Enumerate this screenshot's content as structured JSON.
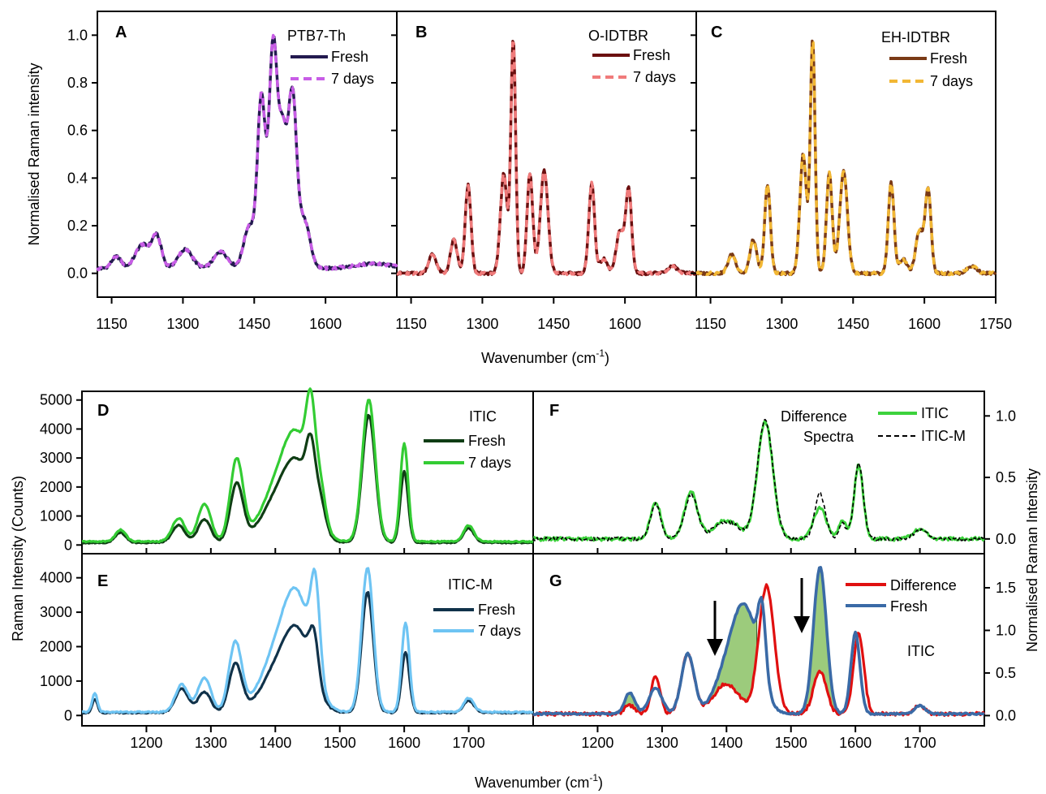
{
  "figure": {
    "top_xlabel": "Wavenumber (cm",
    "bottom_xlabel": "Wavenumber (cm",
    "xlabel_sup": "-1",
    "xlabel_close": ")",
    "top_ylabel": "Normalised Raman intensity",
    "bottom_left_ylabel": "Raman Intensity (Counts)",
    "bottom_right_ylabel": "Normalised Raman Intensity"
  },
  "colors": {
    "ptb7_fresh": "#231a4f",
    "ptb7_7days": "#c85de6",
    "oidtbr_fresh": "#6b0f0f",
    "oidtbr_7days": "#f07b7b",
    "ehidtbr_fresh": "#7a3a16",
    "ehidtbr_7days": "#f2b734",
    "itic_fresh": "#0f3d14",
    "itic_7days": "#33cc33",
    "iticm_fresh": "#10324a",
    "iticm_7days": "#6ec4f3",
    "diff_itic": "#3cd23c",
    "diff_iticm": "#000000",
    "difference": "#e01010",
    "fresh_blue": "#3a6aa6",
    "fill_green": "#9ccb7c"
  },
  "chart_data": [
    {
      "panel": "A",
      "type": "line",
      "legend_title": "PTB7-Th",
      "xlim": [
        1120,
        1750
      ],
      "ylim": [
        -0.1,
        1.1
      ],
      "xticks": [
        1150,
        1300,
        1450,
        1600
      ],
      "yticks": [
        0.0,
        0.2,
        0.4,
        0.6,
        0.8,
        1.0
      ],
      "yticklabels": [
        "0.0",
        "0.2",
        "0.4",
        "0.6",
        "0.8",
        "1.0"
      ],
      "peaks": [
        [
          1160,
          0.05,
          10
        ],
        [
          1215,
          0.1,
          15
        ],
        [
          1245,
          0.13,
          10
        ],
        [
          1305,
          0.08,
          15
        ],
        [
          1380,
          0.07,
          15
        ],
        [
          1440,
          0.18,
          12
        ],
        [
          1465,
          0.7,
          8
        ],
        [
          1490,
          0.95,
          9
        ],
        [
          1510,
          0.5,
          8
        ],
        [
          1530,
          0.72,
          9
        ],
        [
          1555,
          0.2,
          12
        ],
        [
          1700,
          0.02,
          40
        ]
      ],
      "base": 0.02,
      "series": [
        {
          "name": "Fresh",
          "style": "solid"
        },
        {
          "name": "7 days",
          "style": "dashed"
        }
      ]
    },
    {
      "panel": "B",
      "type": "line",
      "legend_title": "O-IDTBR",
      "xlim": [
        1120,
        1750
      ],
      "ylim": [
        -0.1,
        1.1
      ],
      "xticks": [
        1150,
        1300,
        1450,
        1600
      ],
      "yticks": [
        0.0,
        0.2,
        0.4,
        0.6,
        0.8,
        1.0
      ],
      "peaks": [
        [
          1195,
          0.08,
          8
        ],
        [
          1240,
          0.14,
          7
        ],
        [
          1270,
          0.37,
          6
        ],
        [
          1345,
          0.42,
          7
        ],
        [
          1365,
          0.98,
          5
        ],
        [
          1400,
          0.42,
          6
        ],
        [
          1430,
          0.43,
          8
        ],
        [
          1530,
          0.38,
          6
        ],
        [
          1555,
          0.06,
          8
        ],
        [
          1590,
          0.18,
          8
        ],
        [
          1608,
          0.35,
          6
        ],
        [
          1700,
          0.03,
          10
        ]
      ],
      "base": 0.0,
      "series": [
        {
          "name": "Fresh",
          "style": "solid"
        },
        {
          "name": "7 days",
          "style": "dashed"
        }
      ]
    },
    {
      "panel": "C",
      "type": "line",
      "legend_title": "EH-IDTBR",
      "xlim": [
        1120,
        1750
      ],
      "ylim": [
        -0.1,
        1.1
      ],
      "xticks": [
        1150,
        1300,
        1450,
        1600,
        1750
      ],
      "yticks": [
        0.0,
        0.2,
        0.4,
        0.6,
        0.8,
        1.0
      ],
      "peaks": [
        [
          1195,
          0.08,
          8
        ],
        [
          1240,
          0.14,
          7
        ],
        [
          1270,
          0.37,
          6
        ],
        [
          1345,
          0.5,
          7
        ],
        [
          1365,
          0.98,
          5
        ],
        [
          1400,
          0.42,
          6
        ],
        [
          1430,
          0.43,
          8
        ],
        [
          1530,
          0.38,
          6
        ],
        [
          1555,
          0.06,
          8
        ],
        [
          1590,
          0.18,
          8
        ],
        [
          1608,
          0.35,
          6
        ],
        [
          1700,
          0.03,
          10
        ]
      ],
      "base": 0.0,
      "series": [
        {
          "name": "Fresh",
          "style": "solid"
        },
        {
          "name": "7 days",
          "style": "dashed"
        }
      ]
    },
    {
      "panel": "D",
      "type": "line",
      "legend_title": "ITIC",
      "xlim": [
        1100,
        1800
      ],
      "ylim": [
        -300,
        5300
      ],
      "yticks": [
        0,
        1000,
        2000,
        3000,
        4000,
        5000
      ],
      "series": [
        {
          "name": "Fresh",
          "peaks": [
            [
              1160,
              350,
              8
            ],
            [
              1250,
              600,
              10
            ],
            [
              1290,
              800,
              10
            ],
            [
              1340,
              2000,
              10
            ],
            [
              1400,
              1200,
              25
            ],
            [
              1435,
              2400,
              22
            ],
            [
              1455,
              1900,
              7
            ],
            [
              1470,
              900,
              8
            ],
            [
              1545,
              4400,
              10
            ],
            [
              1600,
              2450,
              6
            ],
            [
              1700,
              500,
              8
            ]
          ],
          "base": 80
        },
        {
          "name": "7 days",
          "peaks": [
            [
              1160,
              400,
              8
            ],
            [
              1250,
              800,
              10
            ],
            [
              1290,
              1300,
              10
            ],
            [
              1340,
              2800,
              10
            ],
            [
              1400,
              1500,
              25
            ],
            [
              1435,
              3200,
              22
            ],
            [
              1455,
              2800,
              7
            ],
            [
              1470,
              1200,
              8
            ],
            [
              1545,
              4900,
              10
            ],
            [
              1600,
              3400,
              6
            ],
            [
              1700,
              550,
              8
            ]
          ],
          "base": 120
        }
      ]
    },
    {
      "panel": "E",
      "type": "line",
      "legend_title": "ITIC-M",
      "xlim": [
        1100,
        1800
      ],
      "ylim": [
        -300,
        4700
      ],
      "yticks": [
        0,
        1000,
        2000,
        3000,
        4000
      ],
      "xticks": [
        1200,
        1300,
        1400,
        1500,
        1600,
        1700
      ],
      "series": [
        {
          "name": "Fresh",
          "peaks": [
            [
              1120,
              400,
              4
            ],
            [
              1255,
              700,
              10
            ],
            [
              1290,
              600,
              10
            ],
            [
              1338,
              1400,
              10
            ],
            [
              1400,
              1000,
              25
            ],
            [
              1435,
              2100,
              22
            ],
            [
              1460,
              1300,
              7
            ],
            [
              1543,
              3500,
              9
            ],
            [
              1602,
              1750,
              6
            ],
            [
              1700,
              350,
              8
            ]
          ],
          "base": 80
        },
        {
          "name": "7 days",
          "peaks": [
            [
              1120,
              550,
              4
            ],
            [
              1255,
              800,
              10
            ],
            [
              1290,
              1000,
              10
            ],
            [
              1338,
              2000,
              10
            ],
            [
              1400,
              1400,
              25
            ],
            [
              1435,
              3000,
              22
            ],
            [
              1462,
              2600,
              7
            ],
            [
              1543,
              4200,
              9
            ],
            [
              1602,
              2600,
              6
            ],
            [
              1700,
              400,
              8
            ]
          ],
          "base": 100
        }
      ]
    },
    {
      "panel": "F",
      "type": "line",
      "title_lines": [
        "Difference",
        "Spectra"
      ],
      "xlim": [
        1100,
        1800
      ],
      "ylim": [
        -0.12,
        1.2
      ],
      "yticks": [
        0.0,
        0.5,
        1.0
      ],
      "yticklabels": [
        "0.0",
        "0.5",
        "1.0"
      ],
      "series": [
        {
          "name": "ITIC",
          "peaks": [
            [
              1290,
              0.3,
              8
            ],
            [
              1345,
              0.38,
              10
            ],
            [
              1400,
              0.15,
              20
            ],
            [
              1460,
              0.95,
              12
            ],
            [
              1545,
              0.25,
              10
            ],
            [
              1580,
              0.15,
              6
            ],
            [
              1605,
              0.6,
              7
            ],
            [
              1700,
              0.08,
              10
            ]
          ],
          "base": 0.0
        },
        {
          "name": "ITIC-M",
          "peaks": [
            [
              1290,
              0.28,
              8
            ],
            [
              1345,
              0.36,
              10
            ],
            [
              1400,
              0.14,
              20
            ],
            [
              1460,
              0.97,
              12
            ],
            [
              1545,
              0.37,
              8
            ],
            [
              1580,
              0.12,
              6
            ],
            [
              1605,
              0.62,
              7
            ],
            [
              1700,
              0.07,
              10
            ]
          ],
          "base": 0.0
        }
      ]
    },
    {
      "panel": "G",
      "type": "line",
      "annotation": "ITIC",
      "xlim": [
        1100,
        1800
      ],
      "ylim": [
        -0.12,
        1.9
      ],
      "yticks": [
        0.0,
        0.5,
        1.0,
        1.5
      ],
      "yticklabels": [
        "0.0",
        "0.5",
        "1.0",
        "1.5"
      ],
      "xticks": [
        1200,
        1300,
        1400,
        1500,
        1600,
        1700
      ],
      "series": [
        {
          "name": "Difference",
          "peaks": [
            [
              1250,
              0.1,
              8
            ],
            [
              1290,
              0.45,
              7
            ],
            [
              1340,
              0.7,
              10
            ],
            [
              1400,
              0.35,
              20
            ],
            [
              1462,
              1.5,
              12
            ],
            [
              1545,
              0.5,
              10
            ],
            [
              1605,
              0.95,
              8
            ],
            [
              1700,
              0.1,
              8
            ]
          ],
          "base": 0.02
        },
        {
          "name": "Fresh",
          "peaks": [
            [
              1250,
              0.25,
              8
            ],
            [
              1290,
              0.3,
              10
            ],
            [
              1340,
              0.7,
              10
            ],
            [
              1400,
              0.4,
              20
            ],
            [
              1430,
              1.15,
              20
            ],
            [
              1455,
              0.8,
              6
            ],
            [
              1545,
              1.72,
              10
            ],
            [
              1600,
              0.95,
              7
            ],
            [
              1700,
              0.1,
              8
            ]
          ],
          "base": 0.02
        }
      ]
    }
  ],
  "legends": {
    "A": [
      "Fresh",
      "7 days"
    ],
    "B": [
      "Fresh",
      "7 days"
    ],
    "C": [
      "Fresh",
      "7 days"
    ],
    "D": [
      "Fresh",
      "7 days"
    ],
    "E": [
      "Fresh",
      "7 days"
    ],
    "F": [
      "ITIC",
      "ITIC-M"
    ],
    "G": [
      "Difference",
      "Fresh"
    ]
  }
}
